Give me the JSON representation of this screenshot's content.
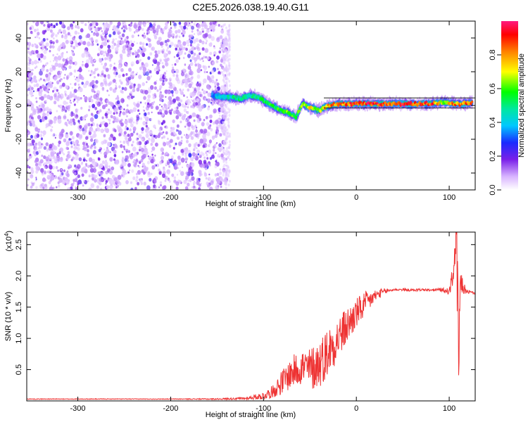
{
  "title": "C2E5.2026.038.19.40.G11",
  "colors": {
    "snr_line": "#ee3333",
    "noise_purple": "#6a1ee6",
    "frame": "#000000"
  },
  "chart_data": [
    {
      "type": "heatmap",
      "xlabel": "Height of straight line (km)",
      "ylabel": "Frequency (Hz)",
      "xlim": [
        -355,
        128
      ],
      "ylim": [
        -50,
        50
      ],
      "x_ticks": [
        -300,
        -200,
        -100,
        0,
        100
      ],
      "y_ticks": [
        -40,
        -20,
        0,
        20,
        40
      ],
      "colorbar": {
        "label": "Normalized spectral amplitude",
        "range": [
          0,
          1
        ],
        "ticks": [
          "0.0",
          "0.2",
          "0.4",
          "0.6",
          "0.8"
        ],
        "colormap": "rainbow (white-purple-blue-cyan-green-yellow-red-magenta)"
      },
      "noise_region_x": [
        -355,
        -140
      ],
      "signal_track": [
        {
          "x": -155,
          "f": 6,
          "a": 0.35
        },
        {
          "x": -145,
          "f": 5,
          "a": 0.45
        },
        {
          "x": -135,
          "f": 5,
          "a": 0.5
        },
        {
          "x": -125,
          "f": 4,
          "a": 0.55
        },
        {
          "x": -115,
          "f": 6,
          "a": 0.5
        },
        {
          "x": -105,
          "f": 5,
          "a": 0.55
        },
        {
          "x": -95,
          "f": 1,
          "a": 0.6
        },
        {
          "x": -85,
          "f": -2,
          "a": 0.6
        },
        {
          "x": -75,
          "f": -4,
          "a": 0.65
        },
        {
          "x": -65,
          "f": -7,
          "a": 0.6
        },
        {
          "x": -58,
          "f": 1,
          "a": 0.7
        },
        {
          "x": -50,
          "f": -1,
          "a": 0.75
        },
        {
          "x": -40,
          "f": -3,
          "a": 0.7
        },
        {
          "x": -30,
          "f": 0,
          "a": 0.85
        },
        {
          "x": -15,
          "f": 1,
          "a": 0.9
        },
        {
          "x": 0,
          "f": 1,
          "a": 0.95
        },
        {
          "x": 20,
          "f": 1,
          "a": 0.95
        },
        {
          "x": 40,
          "f": 1,
          "a": 0.95
        },
        {
          "x": 60,
          "f": 1,
          "a": 0.95
        },
        {
          "x": 80,
          "f": 1,
          "a": 0.95
        },
        {
          "x": 95,
          "f": 2,
          "a": 0.7
        },
        {
          "x": 105,
          "f": 1,
          "a": 0.9
        },
        {
          "x": 115,
          "f": 1,
          "a": 0.9
        },
        {
          "x": 125,
          "f": 2,
          "a": 0.9
        }
      ]
    },
    {
      "type": "line",
      "xlabel": "Height of straight line (km)",
      "ylabel": "SNR (10 * v/v)",
      "y_multiplier": "(x10",
      "y_multiplier_exp": "4",
      "y_multiplier_close": ")",
      "xlim": [
        -355,
        128
      ],
      "ylim": [
        0,
        2.7
      ],
      "x_ticks": [
        -300,
        -200,
        -100,
        0,
        100
      ],
      "y_ticks": [
        0.5,
        1.0,
        1.5,
        2.0,
        2.5
      ],
      "y_tick_labels": [
        "0.5",
        "1.0",
        "1.5",
        "2.0",
        "2.5"
      ],
      "series": [
        {
          "x": [
            -355,
            -300,
            -250,
            -200,
            -150,
            -120,
            -100,
            -90,
            -80,
            -70,
            -60,
            -50,
            -40,
            -30,
            -20,
            -10,
            0,
            10,
            20,
            30,
            40,
            50,
            60,
            70,
            80,
            90,
            100,
            104,
            108,
            110,
            112,
            118,
            128
          ],
          "values": [
            0.03,
            0.03,
            0.03,
            0.03,
            0.03,
            0.04,
            0.08,
            0.15,
            0.3,
            0.45,
            0.55,
            0.5,
            0.6,
            0.8,
            1.0,
            1.2,
            1.4,
            1.55,
            1.68,
            1.75,
            1.78,
            1.78,
            1.77,
            1.78,
            1.77,
            1.78,
            1.75,
            2.0,
            2.6,
            0.6,
            1.9,
            1.75,
            1.72
          ],
          "noise_amplitude": [
            0.005,
            0.005,
            0.005,
            0.005,
            0.01,
            0.02,
            0.06,
            0.1,
            0.2,
            0.25,
            0.3,
            0.35,
            0.4,
            0.4,
            0.35,
            0.3,
            0.25,
            0.2,
            0.1,
            0.05,
            0.02,
            0.02,
            0.02,
            0.02,
            0.02,
            0.03,
            0.05,
            0.2,
            0.2,
            0.0,
            0.2,
            0.04,
            0.02
          ]
        }
      ]
    }
  ]
}
